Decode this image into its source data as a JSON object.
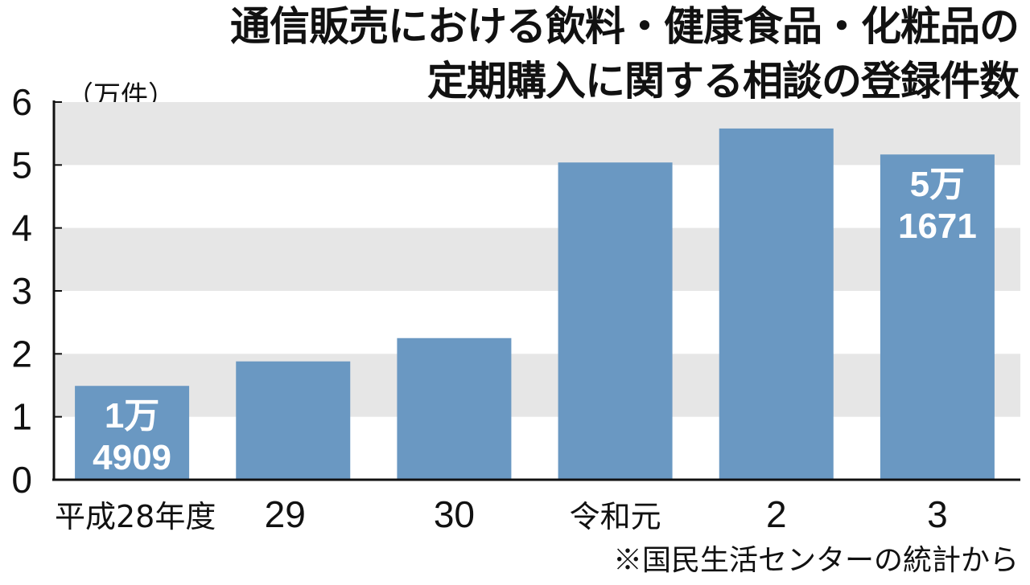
{
  "title_lines": [
    "通信販売における飲料・健康食品・化粧品の",
    "定期購入に関する相談の登録件数"
  ],
  "unit_label": "（万件）",
  "source": "※国民生活センターの統計から",
  "colors": {
    "bar": "#6a98c2",
    "band": "#e6e6e6",
    "axis": "#111111",
    "data_label": "#ffffff"
  },
  "chart_data": {
    "type": "bar",
    "title": "通信販売における飲料・健康食品・化粧品の定期購入に関する相談の登録件数",
    "categories": [
      "平成28年度",
      "29",
      "30",
      "令和元",
      "2",
      "3"
    ],
    "values": [
      1.4909,
      1.88,
      2.25,
      5.04,
      5.58,
      5.1671
    ],
    "unit": "万件",
    "ylim": [
      0,
      6
    ],
    "yticks": [
      0,
      1,
      2,
      3,
      4,
      5,
      6
    ],
    "grid": "alternating horizontal bands",
    "data_labels": [
      {
        "category": "平成28年度",
        "lines": [
          "1万",
          "4909"
        ]
      },
      {
        "category": "3",
        "lines": [
          "5万",
          "1671"
        ]
      }
    ]
  }
}
